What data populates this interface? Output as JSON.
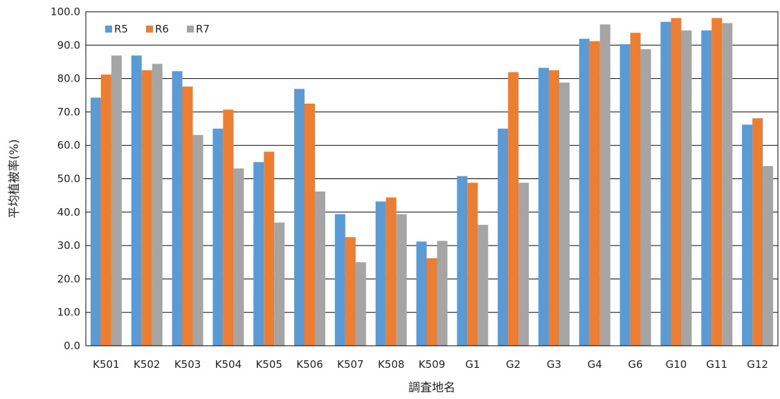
{
  "chart_data": {
    "type": "bar",
    "title": "",
    "xlabel": "調査地名",
    "ylabel": "平均植被率(%)",
    "ylim": [
      0,
      100
    ],
    "ytick_step": 10,
    "ytick_labels": [
      "0.0",
      "10.0",
      "20.0",
      "30.0",
      "40.0",
      "50.0",
      "60.0",
      "70.0",
      "80.0",
      "90.0",
      "100.0"
    ],
    "grid": true,
    "legend_position": "top-left",
    "categories": [
      "K501",
      "K502",
      "K503",
      "K504",
      "K505",
      "K506",
      "K507",
      "K508",
      "K509",
      "G1",
      "G2",
      "G3",
      "G4",
      "G6",
      "G10",
      "G11",
      "G12"
    ],
    "series": [
      {
        "name": "R5",
        "color": "#5b9bd5",
        "values": [
          74.3,
          86.9,
          82.2,
          65.0,
          55.0,
          76.9,
          39.4,
          43.2,
          31.2,
          50.8,
          65.0,
          83.2,
          91.9,
          90.3,
          97.0,
          94.4,
          66.2
        ]
      },
      {
        "name": "R6",
        "color": "#ed7d31",
        "values": [
          81.2,
          82.5,
          77.6,
          70.7,
          58.1,
          72.5,
          32.5,
          44.4,
          26.2,
          48.8,
          81.9,
          82.5,
          91.2,
          93.7,
          98.1,
          98.1,
          68.1
        ]
      },
      {
        "name": "R7",
        "color": "#a5a5a5",
        "values": [
          86.9,
          84.4,
          63.1,
          53.1,
          36.9,
          46.2,
          25.0,
          39.4,
          31.4,
          36.2,
          48.8,
          78.8,
          96.2,
          88.8,
          94.4,
          96.6,
          53.8
        ]
      }
    ]
  }
}
